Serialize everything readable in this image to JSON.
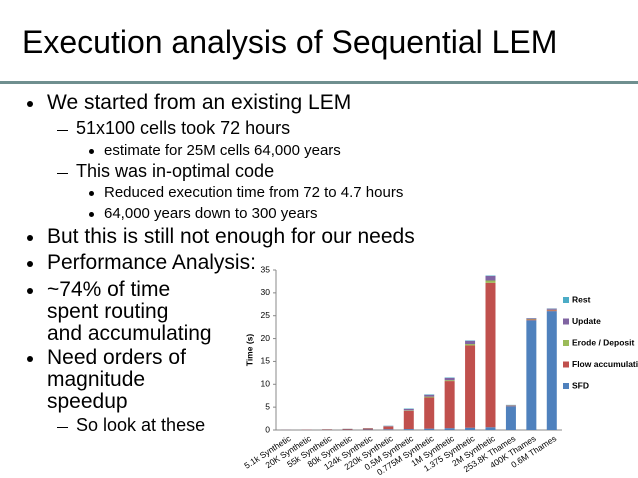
{
  "title": "Execution analysis of Sequential LEM",
  "bullets": [
    {
      "level": 0,
      "lines": [
        "We started from an existing LEM"
      ]
    },
    {
      "level": 1,
      "lines": [
        "51x100 cells took 72 hours"
      ]
    },
    {
      "level": 2,
      "lines": [
        "estimate for 25M cells 64,000 years"
      ]
    },
    {
      "level": 1,
      "lines": [
        "This was in-optimal code"
      ]
    },
    {
      "level": 2,
      "lines": [
        "Reduced execution time from 72 to 4.7 hours"
      ]
    },
    {
      "level": 2,
      "lines": [
        "64,000 years down to 300 years"
      ]
    },
    {
      "level": 0,
      "lines": [
        "But this is still not enough for our needs"
      ]
    },
    {
      "level": 0,
      "lines": [
        "Performance Analysis:"
      ]
    },
    {
      "level": 0,
      "lines": [
        "~74% of time",
        "spent routing",
        "and accumulating"
      ]
    },
    {
      "level": 0,
      "lines": [
        "Need orders of",
        "magnitude",
        "speedup"
      ]
    },
    {
      "level": 1,
      "lines": [
        "So look at these"
      ]
    }
  ],
  "chart_data": {
    "type": "stacked_bar",
    "y_label": "Time (s)",
    "categories": [
      "5.1k Synthetic",
      "20K Synthetic",
      "55k Synthetic",
      "80k Synthetic",
      "124k Synthetic",
      "220k Synthetic",
      "0.5M Synthetic",
      "0.775M Synthetic",
      "1M Synthetic",
      "1.375 Synthetic",
      "2M Synthetic",
      "253.8K Thames",
      "400K Thames",
      "0.6M Thames"
    ],
    "series": [
      {
        "name": "SFD",
        "color": "#4f81bd",
        "values": [
          0.02,
          0.03,
          0.05,
          0.08,
          0.1,
          0.15,
          0.2,
          0.3,
          0.4,
          0.5,
          0.6,
          5.2,
          24.0,
          26.0
        ]
      },
      {
        "name": "Flow accumulation",
        "color": "#c0504d",
        "values": [
          0.02,
          0.05,
          0.1,
          0.15,
          0.25,
          0.6,
          4.0,
          6.8,
          10.3,
          18.0,
          31.6,
          0.1,
          0.2,
          0.2
        ]
      },
      {
        "name": "Erode / Deposit",
        "color": "#9bbb59",
        "values": [
          0,
          0,
          0.01,
          0.02,
          0.03,
          0.05,
          0.1,
          0.2,
          0.2,
          0.3,
          0.5,
          0.05,
          0.1,
          0.1
        ]
      },
      {
        "name": "Update",
        "color": "#8064a2",
        "values": [
          0,
          0,
          0.01,
          0.02,
          0.03,
          0.1,
          0.3,
          0.4,
          0.5,
          0.7,
          1.0,
          0.1,
          0.15,
          0.25
        ]
      },
      {
        "name": "Rest",
        "color": "#4bacc6",
        "values": [
          0,
          0,
          0.01,
          0.01,
          0.02,
          0.05,
          0.1,
          0.1,
          0.1,
          0.1,
          0.1,
          0.05,
          0.05,
          0.05
        ]
      }
    ],
    "ylim": [
      0,
      35
    ],
    "yticks": [
      0,
      5,
      10,
      15,
      20,
      25,
      30,
      35
    ],
    "grid": false,
    "legend": "right"
  }
}
